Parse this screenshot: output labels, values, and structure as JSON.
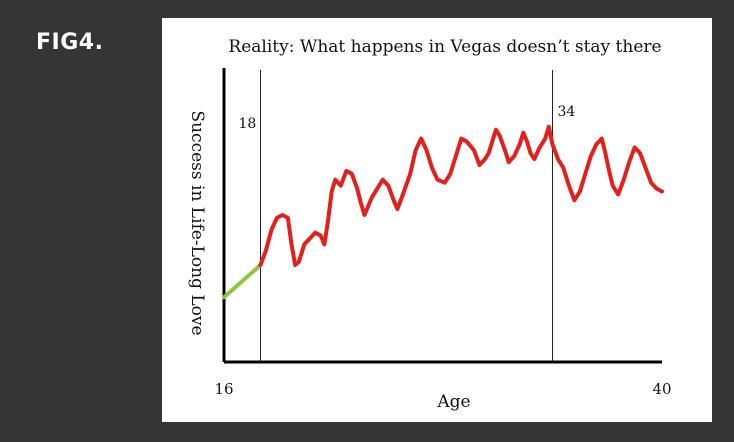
{
  "figure_label": "FIG4.",
  "chart_data": {
    "type": "line",
    "title": "Reality: What happens in Vegas doesn’t stay there",
    "xlabel": "Age",
    "ylabel": "Success in Life-Long Love",
    "xlim": [
      16,
      40
    ],
    "x_tick_labels": [
      "16",
      "40"
    ],
    "markers": [
      {
        "x": 18,
        "label": "18"
      },
      {
        "x": 34,
        "label": "34"
      }
    ],
    "grid": false,
    "colors": {
      "pre_segment": "#8fc63f",
      "main_segment": "#e3201b"
    },
    "series": [
      {
        "color": "#8fc63f",
        "x": [
          16,
          18
        ],
        "y": [
          0.22,
          0.33
        ]
      },
      {
        "color": "#e3201b",
        "x": [
          18,
          18.3,
          18.6,
          18.9,
          19.2,
          19.5,
          19.7,
          19.9,
          20.1,
          20.4,
          20.7,
          21.0,
          21.3,
          21.5,
          21.7,
          21.9,
          22.1,
          22.4,
          22.7,
          23.0,
          23.3,
          23.5,
          23.7,
          23.9,
          24.1,
          24.3,
          24.7,
          25.0,
          25.3,
          25.5,
          25.8,
          26.2,
          26.5,
          26.8,
          27.1,
          27.4,
          27.7,
          28.1,
          28.4,
          28.7,
          29.0,
          29.3,
          29.7,
          30.0,
          30.3,
          30.5,
          30.7,
          30.9,
          31.1,
          31.4,
          31.6,
          31.9,
          32.2,
          32.4,
          32.6,
          32.8,
          33.0,
          33.3,
          33.6,
          33.8,
          34.0,
          34.3,
          34.6,
          34.9,
          35.2,
          35.5,
          35.8,
          36.1,
          36.4,
          36.7,
          36.9,
          37.1,
          37.3,
          37.6,
          37.9,
          38.2,
          38.5,
          38.8,
          39.1,
          39.4,
          39.7,
          40.0
        ],
        "y": [
          0.33,
          0.38,
          0.45,
          0.49,
          0.5,
          0.49,
          0.4,
          0.33,
          0.34,
          0.4,
          0.42,
          0.44,
          0.43,
          0.4,
          0.48,
          0.58,
          0.62,
          0.6,
          0.65,
          0.64,
          0.59,
          0.54,
          0.5,
          0.53,
          0.56,
          0.58,
          0.62,
          0.6,
          0.55,
          0.52,
          0.57,
          0.64,
          0.72,
          0.76,
          0.72,
          0.66,
          0.62,
          0.61,
          0.64,
          0.7,
          0.76,
          0.75,
          0.72,
          0.67,
          0.69,
          0.71,
          0.75,
          0.79,
          0.77,
          0.72,
          0.68,
          0.7,
          0.74,
          0.78,
          0.75,
          0.71,
          0.69,
          0.73,
          0.76,
          0.8,
          0.74,
          0.69,
          0.66,
          0.6,
          0.55,
          0.58,
          0.64,
          0.7,
          0.74,
          0.76,
          0.71,
          0.65,
          0.6,
          0.57,
          0.62,
          0.68,
          0.73,
          0.71,
          0.66,
          0.61,
          0.59,
          0.58
        ]
      }
    ]
  }
}
